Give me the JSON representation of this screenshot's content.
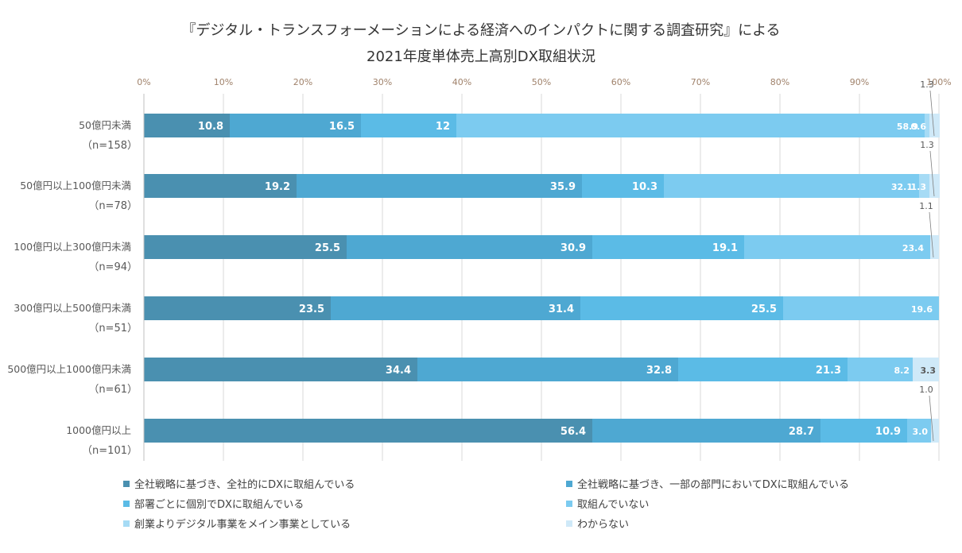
{
  "title": {
    "line1": "『デジタル・トランスフォーメーションによる経済へのインパクトに関する調査研究』による",
    "line2": "2021年度単体売上高別DX取組状況"
  },
  "chart_data": {
    "type": "bar",
    "orientation": "horizontal",
    "stacked": true,
    "normalized": true,
    "xlim": [
      0,
      100
    ],
    "x_ticks": [
      "0%",
      "10%",
      "20%",
      "30%",
      "40%",
      "50%",
      "60%",
      "70%",
      "80%",
      "90%",
      "100%"
    ],
    "grid": true,
    "legend_position": "bottom",
    "categories": [
      {
        "label": "50億円未満",
        "n": "（n=158）"
      },
      {
        "label": "50億円以上100億円未満",
        "n": "（n=78）"
      },
      {
        "label": "100億円以上300億円未満",
        "n": "（n=94）"
      },
      {
        "label": "300億円以上500億円未満",
        "n": "（n=51）"
      },
      {
        "label": "500億円以上1000億円未満",
        "n": "（n=61）"
      },
      {
        "label": "1000億円以上",
        "n": "（n=101）"
      }
    ],
    "series": [
      {
        "name": "全社戦略に基づき、全社的にDXに取組んでいる",
        "color": "#4a90b0",
        "values": [
          10.8,
          19.2,
          25.5,
          23.5,
          34.4,
          56.4
        ]
      },
      {
        "name": "全社戦略に基づき、一部の部門においてDXに取組んでいる",
        "color": "#4ea8d2",
        "values": [
          16.5,
          35.9,
          30.9,
          31.4,
          32.8,
          28.7
        ]
      },
      {
        "name": "部署ごとに個別でDXに取組んでいる",
        "color": "#5bbbe6",
        "values": [
          12,
          10.3,
          19.1,
          25.5,
          21.3,
          10.9
        ]
      },
      {
        "name": "取組んでいない",
        "color": "#7ccbf0",
        "values": [
          58.9,
          32.1,
          23.4,
          19.6,
          8.2,
          3.0
        ]
      },
      {
        "name": "創業よりデジタル事業をメイン事業としている",
        "color": "#a6dbf5",
        "values": [
          0.6,
          1.3,
          0,
          0,
          0,
          0
        ]
      },
      {
        "name": "わからない",
        "color": "#cfe9f8",
        "values": [
          1.3,
          1.3,
          1.1,
          0,
          3.3,
          1.0
        ]
      }
    ],
    "data_labels": [
      [
        "10.8",
        "16.5",
        "12",
        "58.9",
        "0.6",
        "1.3"
      ],
      [
        "19.2",
        "35.9",
        "10.3",
        "32.1",
        "1.3",
        "1.3"
      ],
      [
        "25.5",
        "30.9",
        "19.1",
        "23.4",
        "",
        "1.1"
      ],
      [
        "23.5",
        "31.4",
        "25.5",
        "19.6",
        "",
        ""
      ],
      [
        "34.4",
        "32.8",
        "21.3",
        "8.2",
        "",
        "3.3"
      ],
      [
        "56.4",
        "28.7",
        "10.9",
        "3.0",
        "",
        "1.0"
      ]
    ]
  }
}
